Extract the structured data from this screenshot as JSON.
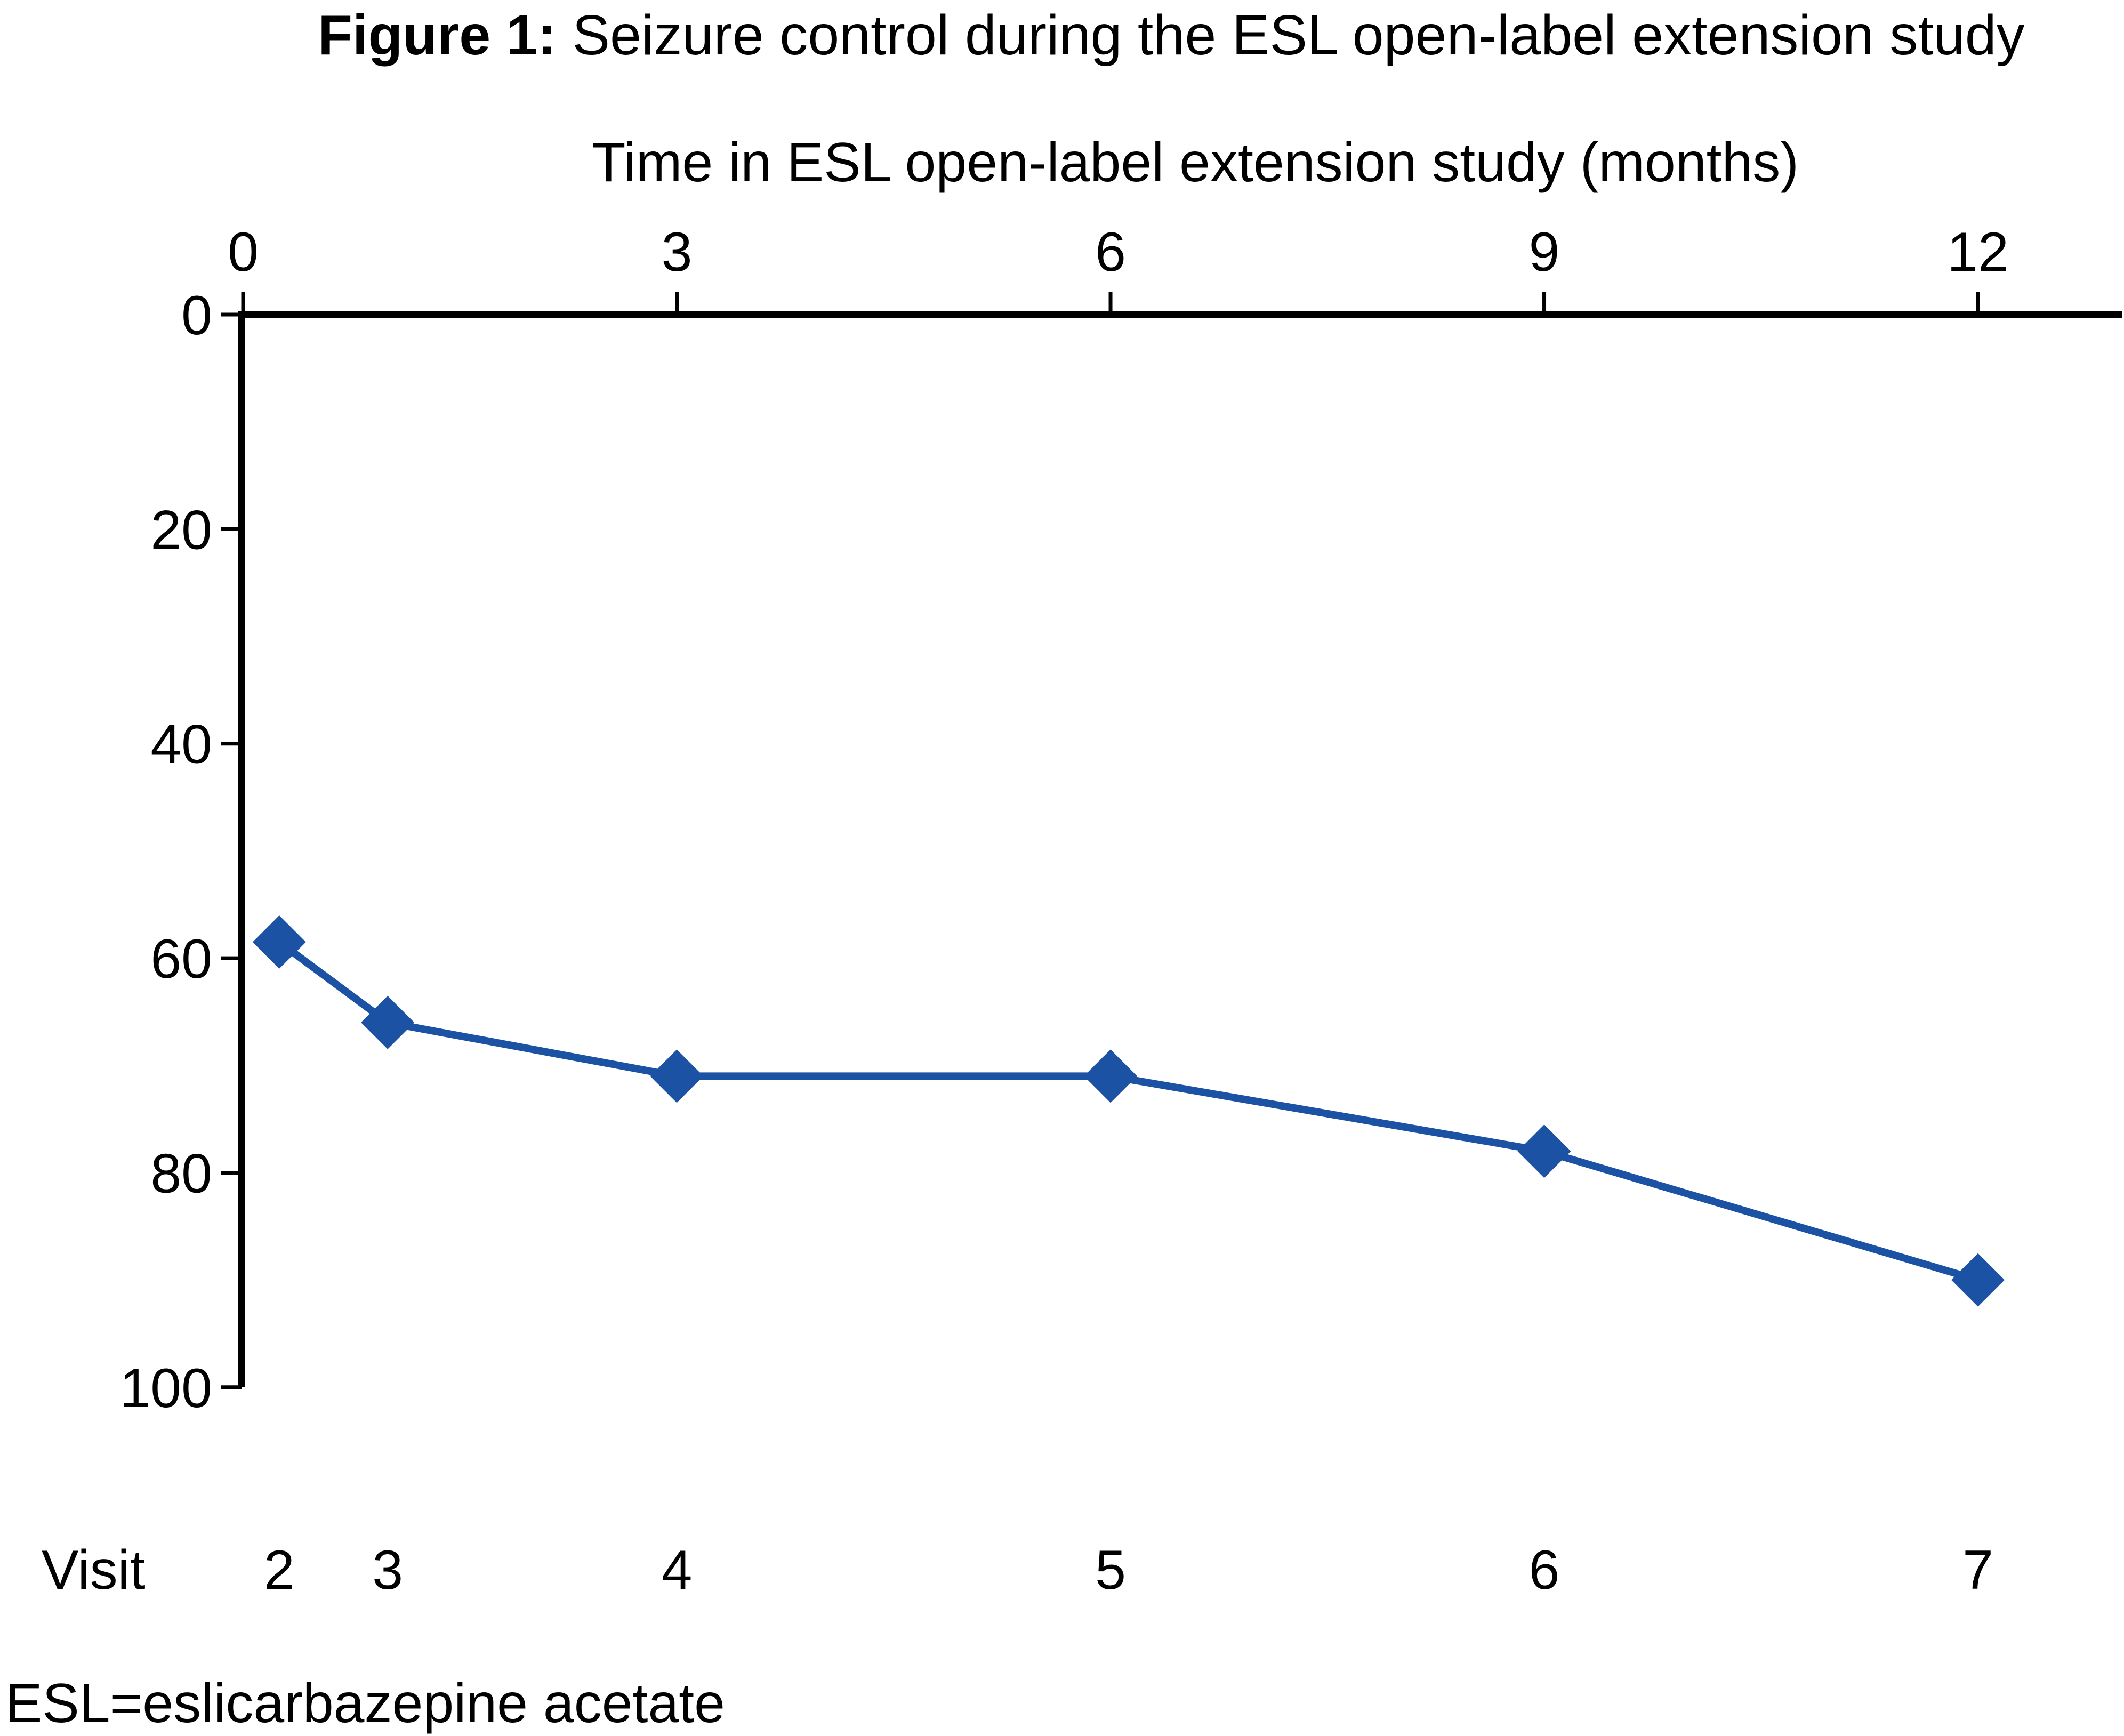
{
  "figure": {
    "title_prefix": "Figure 1:",
    "title_rest": " Seizure control during the ESL open-label extension study",
    "footnote": "ESL=eslicarbazepine acetate"
  },
  "chart_data": {
    "type": "line",
    "title": "Figure 1: Seizure control during the ESL open-label extension study",
    "xlabel": "Time in ESL open-label extension study (months)",
    "xlabel_position": "top",
    "ylabel": "",
    "x_ticks": [
      0,
      3,
      6,
      9,
      12
    ],
    "y_ticks": [
      0,
      20,
      40,
      60,
      80,
      100
    ],
    "xlim": [
      0,
      13
    ],
    "ylim": [
      0,
      100
    ],
    "y_axis_inverted": true,
    "grid": false,
    "legend": null,
    "marker_color": "#1b52a4",
    "line_color": "#1b52a4",
    "visit_row_label": "Visit",
    "series": [
      {
        "name": "ESL open-label extension",
        "marker": "diamond",
        "points": [
          {
            "x": 0.25,
            "y": 58.5,
            "visit": "2"
          },
          {
            "x": 1,
            "y": 66,
            "visit": "3"
          },
          {
            "x": 3,
            "y": 71,
            "visit": "4"
          },
          {
            "x": 6,
            "y": 71,
            "visit": "5"
          },
          {
            "x": 9,
            "y": 78,
            "visit": "6"
          },
          {
            "x": 12,
            "y": 90,
            "visit": "7"
          }
        ]
      }
    ]
  }
}
